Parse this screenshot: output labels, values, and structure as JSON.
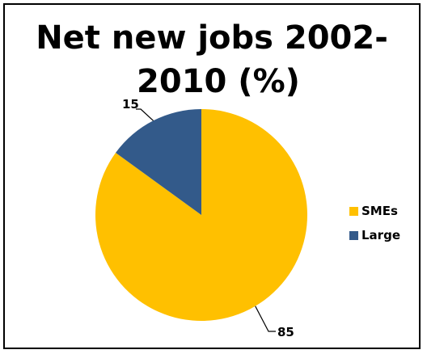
{
  "chart_data": {
    "type": "pie",
    "title_lines": [
      "Net new jobs 2002-",
      "2010 (%)"
    ],
    "categories": [
      "SMEs",
      "Large"
    ],
    "values": [
      85,
      15
    ],
    "colors": [
      "#FFC000",
      "#335A8A"
    ],
    "data_labels": [
      "85",
      "15"
    ],
    "legend": {
      "position": "right",
      "entries": [
        "SMEs",
        "Large"
      ]
    }
  }
}
